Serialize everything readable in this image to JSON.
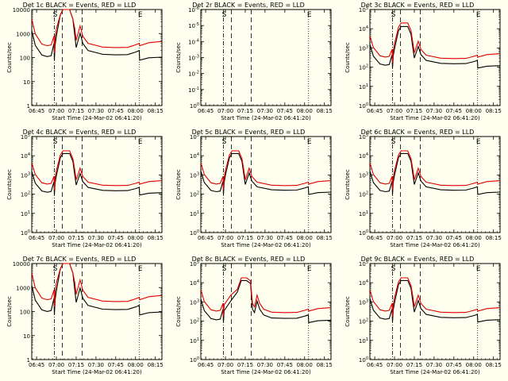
{
  "chart_data": {
    "type": "line",
    "layout": "3x3 grid of log-scale time-series panels",
    "xlabel": "Start Time (24-Mar-02 06:41:20)",
    "ylabel": "Counts/sec",
    "x_tick_labels": [
      "06:45",
      "07:00",
      "07:15",
      "07:30",
      "07:45",
      "08:00",
      "08:15"
    ],
    "x_tick_minutes": [
      45,
      60,
      75,
      90,
      105,
      120,
      135
    ],
    "xlim_minutes": [
      41.33,
      140
    ],
    "markers": [
      {
        "minute": 58.5,
        "style": "dash-dot",
        "label": "S"
      },
      {
        "minute": 64.5,
        "style": "dash"
      },
      {
        "minute": 79.5,
        "style": "dash"
      },
      {
        "minute": 123.0,
        "style": "dot",
        "label": "E"
      }
    ],
    "colors": {
      "events": "#000000",
      "lld": "#e00000",
      "background": "#fffff0"
    },
    "legend_text": "BLACK = Events, RED = LLD",
    "panels": [
      {
        "title": "Det 1c BLACK = Events, RED = LLD",
        "ylim": [
          1,
          10000
        ],
        "y_tick_labels": [
          "1",
          "10",
          "100",
          "1000",
          "10000"
        ],
        "profile": "normal",
        "clipped": true,
        "events_top": 10000,
        "lld_top": 10000,
        "events_floor": 130,
        "lld_floor": 260
      },
      {
        "title": "Det 2r BLACK = Events, RED = LLD",
        "ylim": [
          1,
          1e-06
        ],
        "y_tick_labels": [
          "10^0",
          "10^-1",
          "10^-2",
          "10^-3",
          "10^-4",
          "10^-5",
          "10^-6"
        ],
        "profile": "empty"
      },
      {
        "title": "Det 3c BLACK = Events, RED = LLD",
        "ylim": [
          1,
          100000
        ],
        "y_tick_labels": [
          "10^0",
          "10^1",
          "10^2",
          "10^3",
          "10^4",
          "10^5"
        ],
        "profile": "normal",
        "clipped": false,
        "events_top": 13000,
        "lld_top": 20000,
        "events_floor": 150,
        "lld_floor": 280
      },
      {
        "title": "Det 4c BLACK = Events, RED = LLD",
        "ylim": [
          1,
          100000
        ],
        "y_tick_labels": [
          "10^0",
          "10^1",
          "10^2",
          "10^3",
          "10^4",
          "10^5"
        ],
        "profile": "normal",
        "clipped": false,
        "events_top": 13000,
        "lld_top": 18000,
        "events_floor": 150,
        "lld_floor": 280
      },
      {
        "title": "Det 5c BLACK = Events, RED = LLD",
        "ylim": [
          1,
          100000
        ],
        "y_tick_labels": [
          "10^0",
          "10^1",
          "10^2",
          "10^3",
          "10^4",
          "10^5"
        ],
        "profile": "normal",
        "clipped": false,
        "events_top": 13000,
        "lld_top": 18000,
        "events_floor": 160,
        "lld_floor": 280
      },
      {
        "title": "Det 6c BLACK = Events, RED = LLD",
        "ylim": [
          1,
          100000
        ],
        "y_tick_labels": [
          "10^0",
          "10^1",
          "10^2",
          "10^3",
          "10^4",
          "10^5"
        ],
        "profile": "normal",
        "clipped": false,
        "events_top": 13000,
        "lld_top": 18000,
        "events_floor": 160,
        "lld_floor": 280
      },
      {
        "title": "Det 7c BLACK = Events, RED = LLD",
        "ylim": [
          1,
          10000
        ],
        "y_tick_labels": [
          "1",
          "10",
          "100",
          "1000",
          "10000"
        ],
        "profile": "normal",
        "clipped": true,
        "events_top": 10000,
        "lld_top": 10000,
        "events_floor": 120,
        "lld_floor": 260
      },
      {
        "title": "Det 8c BLACK = Events, RED = LLD",
        "ylim": [
          1,
          100000
        ],
        "y_tick_labels": [
          "10^0",
          "10^1",
          "10^2",
          "10^3",
          "10^4",
          "10^5"
        ],
        "profile": "late",
        "clipped": false,
        "events_top": 13000,
        "lld_top": 18000,
        "events_floor": 140,
        "lld_floor": 280
      },
      {
        "title": "Det 9c BLACK = Events, RED = LLD",
        "ylim": [
          1,
          100000
        ],
        "y_tick_labels": [
          "10^0",
          "10^1",
          "10^2",
          "10^3",
          "10^4",
          "10^5"
        ],
        "profile": "normal",
        "clipped": false,
        "events_top": 13000,
        "lld_top": 18000,
        "events_floor": 150,
        "lld_floor": 280
      }
    ]
  }
}
